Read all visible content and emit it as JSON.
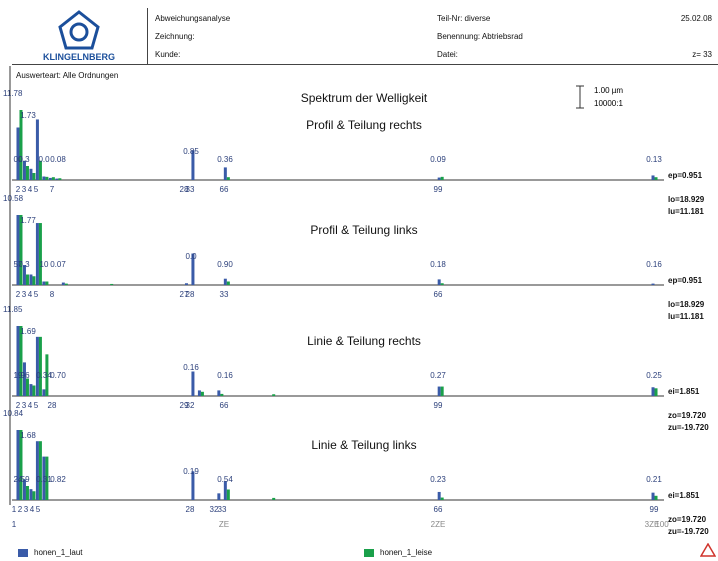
{
  "header": {
    "logo_text": "KLINGELNBERG",
    "analysis": "Abweichungsanalyse",
    "drawing": "Zeichnung:",
    "customer": "Kunde:",
    "part_no": "Teil-Nr: diverse",
    "designation": "Benennung: Abtriebsrad",
    "file": "Datei:",
    "date": "25.02.08",
    "z": "z= 33"
  },
  "eval_mode": "Auswerteart: Alle Ordnungen",
  "scale": {
    "amp": "1.00 µm",
    "ratio": "10000:1"
  },
  "colors": {
    "laut": "#3a5ba8",
    "leise": "#1aa04a",
    "axis": "#333333",
    "warn": "#d0342c"
  },
  "legend": [
    {
      "label": "honen_1_laut",
      "color": "#3a5ba8"
    },
    {
      "label": "honen_1_leise",
      "color": "#1aa04a"
    }
  ],
  "chart_data": [
    {
      "type": "bar",
      "title": "Spektrum der Welligkeit",
      "subtitle": "Profil & Teilung rechts",
      "xlim": [
        0,
        100
      ],
      "ylim": [
        0,
        2
      ],
      "x_ticks": [
        "2",
        "3",
        "4",
        "5",
        "7",
        "28",
        "33",
        "66",
        "99"
      ],
      "left_labels": [
        "11.78"
      ],
      "stats": [
        "ep=0.951",
        "lo=18.929",
        "lu=11.181"
      ],
      "series": [
        {
          "name": "honen_1_laut",
          "points": [
            [
              1,
              1.5
            ],
            [
              2,
              0.55
            ],
            [
              3,
              0.32
            ],
            [
              4,
              1.73
            ],
            [
              5,
              0.1
            ],
            [
              6,
              0.06
            ],
            [
              7,
              0.04
            ],
            [
              28,
              0.85
            ],
            [
              33,
              0.36
            ],
            [
              66,
              0.07
            ],
            [
              99,
              0.13
            ]
          ]
        },
        {
          "name": "honen_1_leise",
          "points": [
            [
              1,
              2
            ],
            [
              2,
              0.4
            ],
            [
              3,
              0.2
            ],
            [
              4,
              0.55
            ],
            [
              5,
              0.09
            ],
            [
              6,
              0.08
            ],
            [
              7,
              0.05
            ],
            [
              33,
              0.08
            ],
            [
              66,
              0.09
            ],
            [
              99,
              0.08
            ]
          ]
        }
      ],
      "value_labels": [
        "1.73",
        "00",
        "0.3",
        "0.0",
        "0.08",
        "0.85",
        "0.36",
        "0.09",
        "0.13"
      ]
    },
    {
      "type": "bar",
      "subtitle": "Profil & Teilung links",
      "xlim": [
        0,
        100
      ],
      "ylim": [
        0,
        2
      ],
      "x_ticks": [
        "2",
        "3",
        "4",
        "5",
        "8",
        "27",
        "28",
        "33",
        "66"
      ],
      "left_labels": [
        "10.58"
      ],
      "stats": [
        "ep=0.951",
        "lo=18.929",
        "lu=11.181"
      ],
      "series": [
        {
          "name": "honen_1_laut",
          "points": [
            [
              1,
              2
            ],
            [
              2,
              0.57
            ],
            [
              3,
              0.3
            ],
            [
              4,
              1.77
            ],
            [
              5,
              0.1
            ],
            [
              8,
              0.07
            ],
            [
              27,
              0.05
            ],
            [
              28,
              0.9
            ],
            [
              33,
              0.18
            ],
            [
              66,
              0.16
            ],
            [
              99,
              0.04
            ]
          ]
        },
        {
          "name": "honen_1_leise",
          "points": [
            [
              1,
              2
            ],
            [
              2,
              0.3
            ],
            [
              3,
              0.25
            ],
            [
              4,
              1.77
            ],
            [
              5,
              0.1
            ],
            [
              8,
              0.04
            ],
            [
              15,
              0.03
            ],
            [
              33,
              0.1
            ],
            [
              66,
              0.05
            ]
          ]
        }
      ],
      "value_labels": [
        "1.77",
        "57",
        "0.3",
        "10",
        "0.07",
        "0.0",
        "0.90",
        "0.18",
        "0.16"
      ]
    },
    {
      "type": "bar",
      "subtitle": "Linie & Teilung rechts",
      "xlim": [
        0,
        100
      ],
      "ylim": [
        0,
        2
      ],
      "x_ticks": [
        "2",
        "3",
        "4",
        "5",
        "28",
        "29",
        "32",
        "66",
        "99"
      ],
      "left_labels": [
        "11.85"
      ],
      "stats": [
        "ei=1.851",
        "zo=19.720",
        "zu=-19.720"
      ],
      "series": [
        {
          "name": "honen_1_laut",
          "points": [
            [
              1,
              2
            ],
            [
              2,
              0.96
            ],
            [
              3,
              0.34
            ],
            [
              4,
              1.69
            ],
            [
              5,
              0.19
            ],
            [
              28,
              0.7
            ],
            [
              29,
              0.16
            ],
            [
              32,
              0.16
            ],
            [
              66,
              0.27
            ],
            [
              99,
              0.25
            ]
          ]
        },
        {
          "name": "honen_1_leise",
          "points": [
            [
              1,
              2
            ],
            [
              2,
              0.5
            ],
            [
              3,
              0.3
            ],
            [
              4,
              1.69
            ],
            [
              5,
              1.19
            ],
            [
              29,
              0.12
            ],
            [
              32,
              0.06
            ],
            [
              40,
              0.05
            ],
            [
              66,
              0.27
            ],
            [
              99,
              0.22
            ]
          ]
        }
      ],
      "value_labels": [
        "1.69",
        "19",
        ".96",
        "0.34",
        "0.70",
        "0.16",
        "0.16",
        "0.27",
        "0.25"
      ]
    },
    {
      "type": "bar",
      "subtitle": "Linie & Teilung links",
      "xlim": [
        0,
        100
      ],
      "ylim": [
        0,
        2
      ],
      "x_ticks": [
        "1",
        "2",
        "3",
        "4",
        "5",
        "28",
        "32",
        "33",
        "66",
        "99"
      ],
      "left_labels": [
        "10.84"
      ],
      "stats": [
        "ei=1.851",
        "zo=19.720",
        "zu=-19.720"
      ],
      "series": [
        {
          "name": "honen_1_laut",
          "points": [
            [
              1,
              2
            ],
            [
              2,
              0.59
            ],
            [
              3,
              0.31
            ],
            [
              4,
              1.68
            ],
            [
              5,
              1.24
            ],
            [
              28,
              0.82
            ],
            [
              32,
              0.19
            ],
            [
              33,
              0.54
            ],
            [
              66,
              0.23
            ],
            [
              99,
              0.21
            ]
          ]
        },
        {
          "name": "honen_1_leise",
          "points": [
            [
              1,
              2
            ],
            [
              2,
              0.4
            ],
            [
              3,
              0.25
            ],
            [
              4,
              1.68
            ],
            [
              5,
              1.24
            ],
            [
              33,
              0.3
            ],
            [
              40,
              0.06
            ],
            [
              66,
              0.07
            ],
            [
              99,
              0.12
            ]
          ]
        }
      ],
      "value_labels": [
        "1.68",
        "24",
        ".59",
        "0.31",
        "0.82",
        "0.19",
        "0.54",
        "0.23",
        "0.21"
      ]
    }
  ],
  "bottom_axis": {
    "labels": [
      "1",
      "ZE",
      "2ZE",
      "3ZE",
      "100"
    ]
  }
}
